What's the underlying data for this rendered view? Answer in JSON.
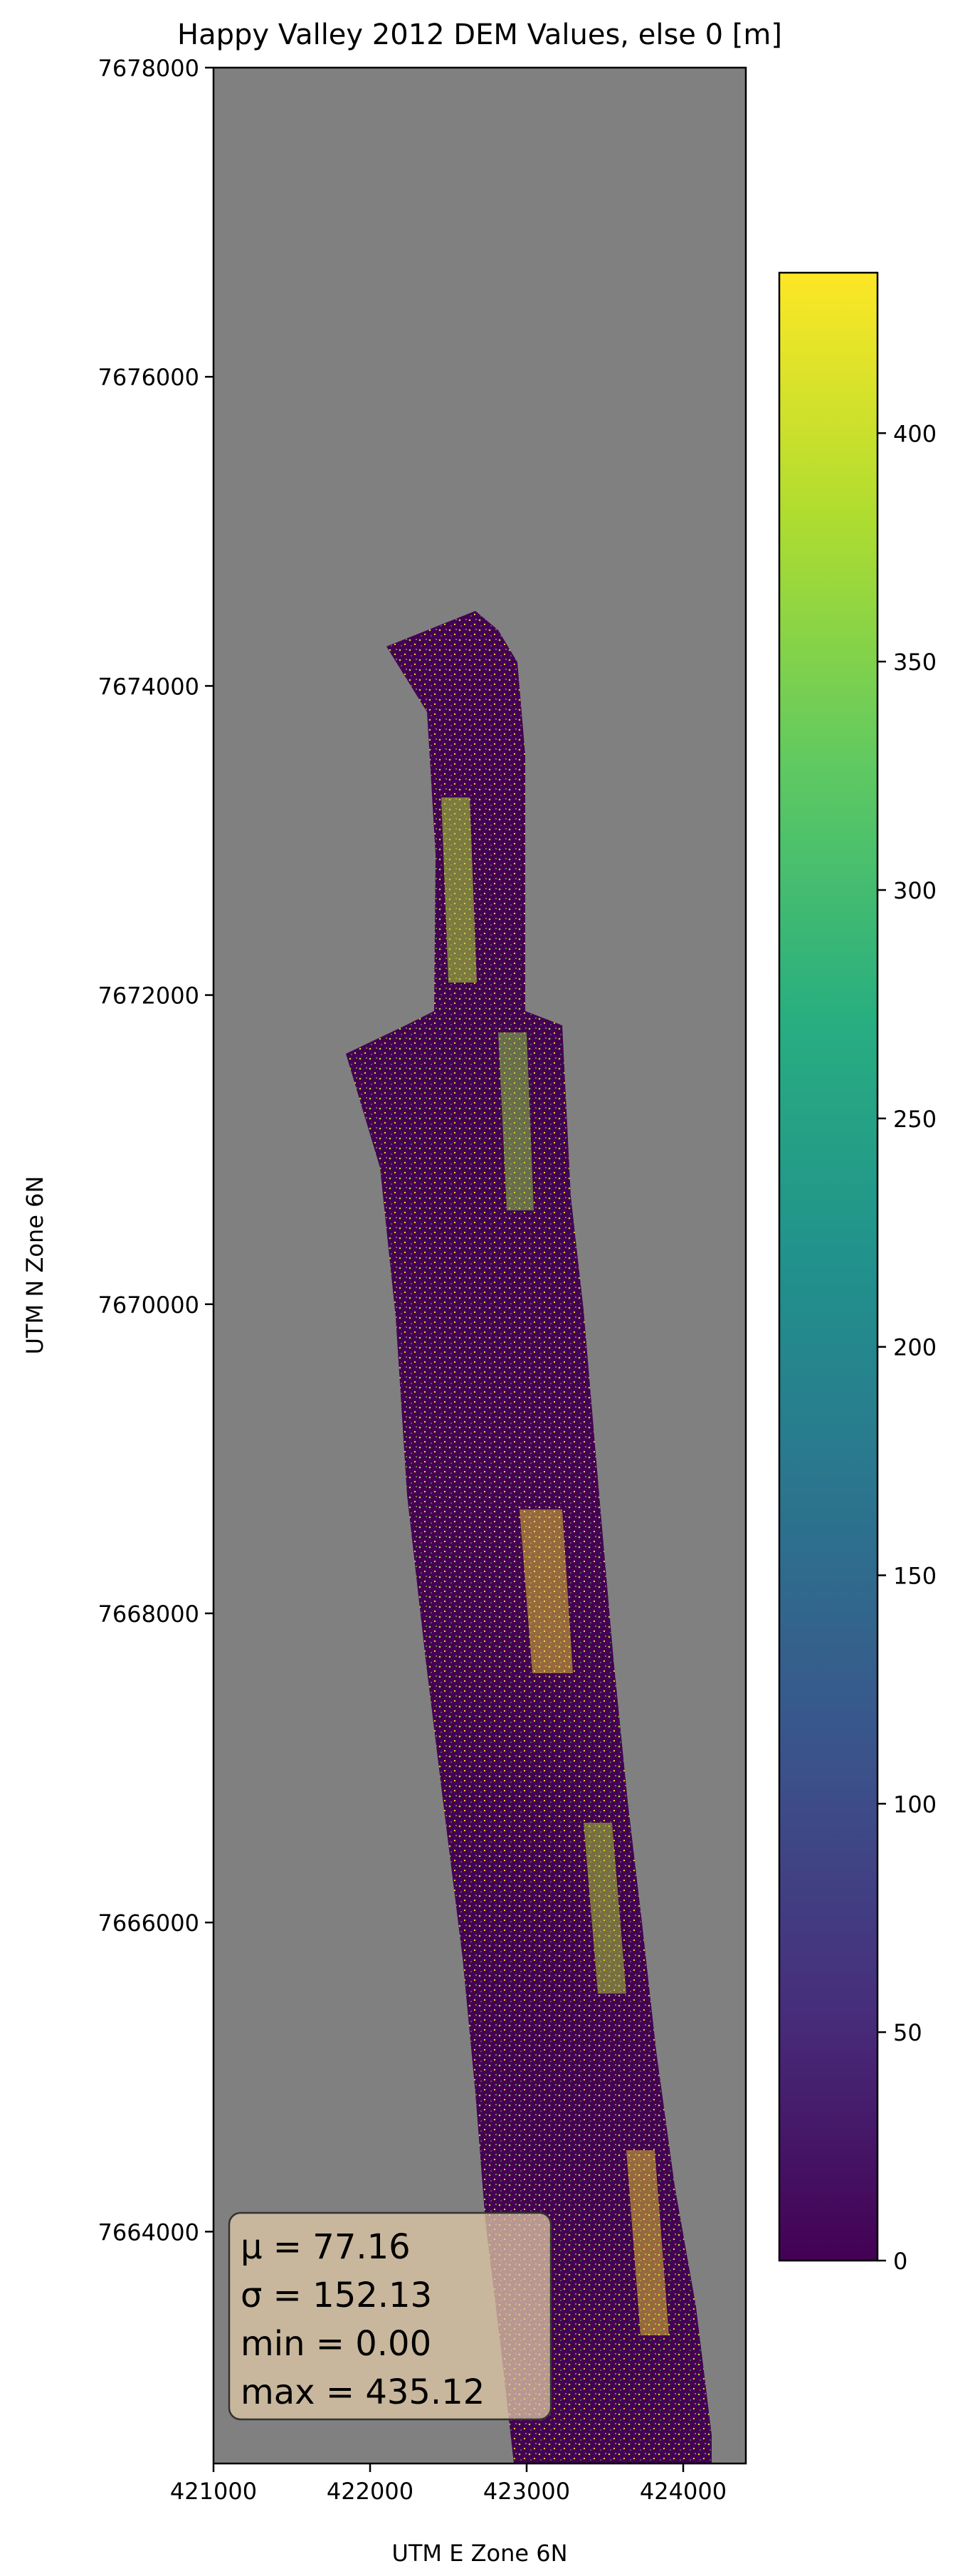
{
  "chart_data": {
    "type": "heatmap",
    "title": "Happy Valley 2012 DEM Values, else 0 [m]",
    "xlabel": "UTM E Zone 6N",
    "ylabel": "UTM N Zone 6N",
    "xlim": [
      421000,
      424400
    ],
    "ylim": [
      7662500,
      7678000
    ],
    "x_ticks": [
      421000,
      422000,
      423000,
      424000
    ],
    "y_ticks": [
      7664000,
      7666000,
      7668000,
      7670000,
      7672000,
      7674000,
      7676000,
      7678000
    ],
    "background_color": "#808080",
    "colormap": "viridis",
    "colorbar": {
      "min": 0,
      "max": 435.12,
      "ticks": [
        0,
        50,
        100,
        150,
        200,
        250,
        300,
        350,
        400
      ]
    },
    "stats_box": {
      "lines": [
        "μ = 77.16",
        "σ = 152.13",
        "min = 0.00",
        "max = 435.12"
      ],
      "placement": "bottom-left",
      "box_color": "#e0c9a6"
    },
    "grid": false,
    "colors": {
      "low": "#440154",
      "mid": "#21918c",
      "high": "#fde725",
      "bright_green": "#8fd744"
    }
  }
}
